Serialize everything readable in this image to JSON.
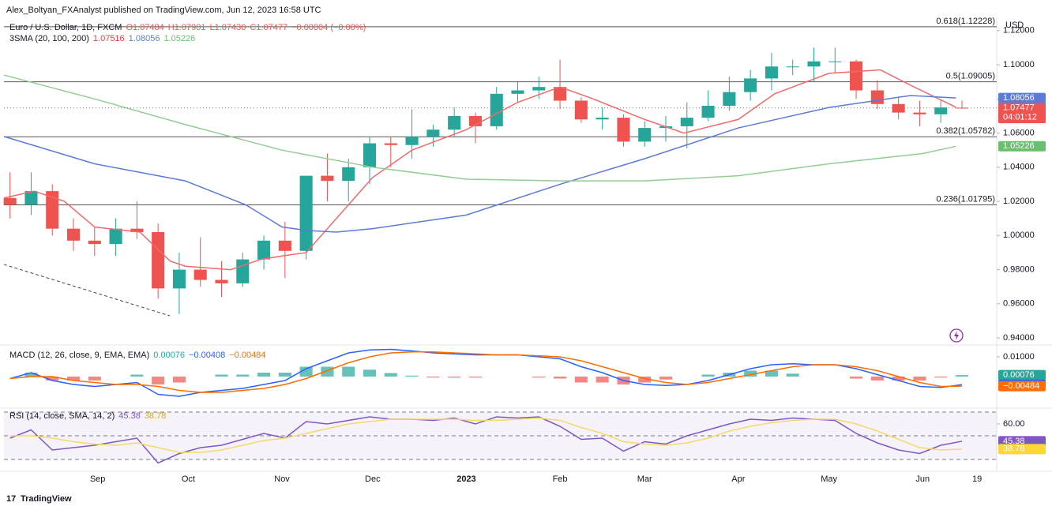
{
  "header": {
    "publisher": "Alex_Boltyan_FXAnalyst published on TradingView.com, Jun 12, 2023 16:58 UTC",
    "currency": "USD",
    "footer": "TradingView"
  },
  "chart_data": [
    {
      "type": "candlestick",
      "title": "Euro / U.S. Dollar, 1D, FXCM",
      "ohlc_labels": [
        "O1.07484",
        "H1.07901",
        "L1.07430",
        "C1.07477",
        "−0.00004 (−0.00%)"
      ],
      "legend": "3SMA (20, 100, 200)",
      "xlim": [
        0,
        328.5
      ],
      "xticks": [
        {
          "value": 31,
          "label": "Sep"
        },
        {
          "value": 61,
          "label": "Oct"
        },
        {
          "value": 92,
          "label": "Nov"
        },
        {
          "value": 122,
          "label": "Dec"
        },
        {
          "value": 153,
          "label": "2023"
        },
        {
          "value": 184,
          "label": "Feb"
        },
        {
          "value": 212,
          "label": "Mar"
        },
        {
          "value": 243,
          "label": "Apr"
        },
        {
          "value": 273,
          "label": "May"
        },
        {
          "value": 304,
          "label": "Jun"
        },
        {
          "value": 322,
          "label": "19"
        }
      ],
      "ylim": [
        0.9368,
        1.125
      ],
      "yticks": [
        {
          "value": 0.94,
          "label": "0.94000"
        },
        {
          "value": 0.96,
          "label": "0.96000"
        },
        {
          "value": 0.98,
          "label": "0.98000"
        },
        {
          "value": 1.0,
          "label": "1.00000"
        },
        {
          "value": 1.02,
          "label": "1.02000"
        },
        {
          "value": 1.04,
          "label": "1.04000"
        },
        {
          "value": 1.06,
          "label": "1.06000"
        },
        {
          "value": 1.08,
          "label": "1.08000"
        },
        {
          "value": 1.1,
          "label": "1.10000"
        },
        {
          "value": 1.12,
          "label": "1.12000"
        }
      ],
      "up_color": "#26a69a",
      "down_color": "#ef5350",
      "x": [
        2,
        9,
        16,
        23,
        30,
        37,
        44,
        51,
        58,
        65,
        72,
        79,
        86,
        93,
        100,
        107,
        114,
        121,
        128,
        135,
        142,
        149,
        156,
        163,
        170,
        177,
        184,
        191,
        198,
        205,
        212,
        219,
        226,
        233,
        240,
        247,
        254,
        261,
        268,
        275,
        282,
        289,
        296,
        303,
        310,
        317
      ],
      "open": [
        1.022,
        1.018,
        1.026,
        1.004,
        0.997,
        0.995,
        1.004,
        1.002,
        0.969,
        0.98,
        0.974,
        0.972,
        0.986,
        0.997,
        0.991,
        1.035,
        1.032,
        1.04,
        1.054,
        1.053,
        1.058,
        1.062,
        1.07,
        1.064,
        1.083,
        1.085,
        1.087,
        1.079,
        1.068,
        1.069,
        1.055,
        1.063,
        1.064,
        1.069,
        1.076,
        1.084,
        1.092,
        1.099,
        1.099,
        1.102,
        1.102,
        1.085,
        1.077,
        1.072,
        1.071,
        1.07484
      ],
      "high": [
        1.037,
        1.037,
        1.03,
        1.01,
        1.005,
        1.01,
        1.02,
        1.007,
        0.99,
        0.999,
        0.985,
        0.99,
        1.0,
        1.008,
        1.035,
        1.048,
        1.045,
        1.058,
        1.058,
        1.074,
        1.065,
        1.075,
        1.072,
        1.087,
        1.09,
        1.093,
        1.103,
        1.081,
        1.075,
        1.071,
        1.067,
        1.07,
        1.078,
        1.085,
        1.093,
        1.097,
        1.107,
        1.103,
        1.11,
        1.11,
        1.103,
        1.091,
        1.081,
        1.079,
        1.08,
        1.07901
      ],
      "low": [
        1.01,
        1.012,
        1.0,
        0.991,
        0.988,
        0.988,
        0.998,
        0.963,
        0.954,
        0.97,
        0.964,
        0.97,
        0.98,
        0.975,
        0.986,
        1.02,
        1.02,
        1.03,
        1.04,
        1.045,
        1.052,
        1.058,
        1.054,
        1.062,
        1.078,
        1.08,
        1.074,
        1.066,
        1.062,
        1.052,
        1.052,
        1.055,
        1.051,
        1.067,
        1.073,
        1.079,
        1.085,
        1.094,
        1.09,
        1.095,
        1.08,
        1.074,
        1.068,
        1.064,
        1.066,
        1.0743
      ],
      "close": [
        1.018,
        1.026,
        1.004,
        0.997,
        0.995,
        1.004,
        1.002,
        0.969,
        0.98,
        0.974,
        0.972,
        0.986,
        0.997,
        0.991,
        1.035,
        1.032,
        1.04,
        1.054,
        1.053,
        1.058,
        1.062,
        1.07,
        1.064,
        1.083,
        1.085,
        1.087,
        1.079,
        1.068,
        1.069,
        1.055,
        1.063,
        1.064,
        1.069,
        1.076,
        1.084,
        1.092,
        1.099,
        1.099,
        1.102,
        1.102,
        1.085,
        1.077,
        1.072,
        1.071,
        1.075,
        1.07477
      ],
      "series": [
        {
          "color": "#f06a6a",
          "x": [
            0,
            10,
            20,
            30,
            45,
            55,
            60,
            75,
            85,
            92,
            100,
            110,
            122,
            135,
            153,
            170,
            184,
            195,
            212,
            225,
            243,
            255,
            273,
            290,
            300,
            315
          ],
          "values": [
            1.022,
            1.026,
            1.02,
            1.005,
            1.002,
            0.985,
            0.982,
            0.98,
            0.986,
            0.988,
            0.99,
            1.01,
            1.034,
            1.05,
            1.062,
            1.078,
            1.087,
            1.08,
            1.068,
            1.06,
            1.068,
            1.083,
            1.095,
            1.097,
            1.088,
            1.07516
          ]
        },
        {
          "color": "#5b7bd5",
          "x": [
            0,
            30,
            60,
            80,
            92,
            100,
            110,
            122,
            153,
            184,
            212,
            243,
            273,
            300,
            315
          ],
          "values": [
            1.058,
            1.042,
            1.032,
            1.018,
            1.005,
            1.003,
            1.002,
            1.004,
            1.012,
            1.03,
            1.045,
            1.063,
            1.075,
            1.082,
            1.08056
          ]
        },
        {
          "color": "#94cc94",
          "x": [
            0,
            30,
            60,
            92,
            122,
            153,
            184,
            212,
            243,
            273,
            304,
            315
          ],
          "values": [
            1.094,
            1.08,
            1.065,
            1.05,
            1.04,
            1.033,
            1.032,
            1.032,
            1.035,
            1.042,
            1.048,
            1.05226
          ]
        }
      ],
      "levels": [
        {
          "value": 1.12228,
          "label": "0.618(1.12228)"
        },
        {
          "value": 1.09005,
          "label": "0.5(1.09005)"
        },
        {
          "value": 1.05782,
          "label": "0.382(1.05782)"
        },
        {
          "value": 1.01795,
          "label": "0.236(1.01795)"
        }
      ],
      "price_labels": [
        {
          "value": 1.07516,
          "label": "1.07516",
          "color": "#f23645"
        },
        {
          "value": 1.08056,
          "label": "1.08056",
          "color": "#5b7bd5"
        },
        {
          "value": 1.05226,
          "label": "1.05226",
          "color": "#6abf6e"
        },
        {
          "value": 1.07477,
          "label": "1.07477",
          "color": "#ef5350",
          "countdown": "04:01:12"
        }
      ]
    },
    {
      "type": "macd",
      "title": "MACD (12, 26, close, 9, EMA, EMA)",
      "xlim": [
        0,
        328.5
      ],
      "ylim": [
        -0.0152,
        0.0148
      ],
      "yticks": [
        {
          "value": 0.01,
          "label": "0.01000"
        }
      ],
      "x": [
        2,
        9,
        16,
        23,
        30,
        37,
        44,
        51,
        58,
        65,
        72,
        79,
        86,
        93,
        100,
        107,
        114,
        121,
        128,
        135,
        142,
        149,
        156,
        163,
        170,
        177,
        184,
        191,
        198,
        205,
        212,
        219,
        226,
        233,
        240,
        247,
        254,
        261,
        268,
        275,
        282,
        289,
        296,
        303,
        310,
        317
      ],
      "histogram": [
        0,
        0.002,
        -0.002,
        -0.002,
        -0.002,
        0,
        0.001,
        -0.004,
        -0.003,
        0,
        0.001,
        0.001,
        0.002,
        0.002,
        0.005,
        0.005,
        0.005,
        0.0035,
        0.0018,
        0.0005,
        -0.0005,
        -0.0005,
        -0.0005,
        0,
        0,
        -0.0005,
        -0.001,
        -0.003,
        -0.003,
        -0.004,
        -0.003,
        -0.0015,
        0,
        0.001,
        0.002,
        0.003,
        0.003,
        0.0015,
        0,
        0,
        -0.001,
        -0.002,
        -0.002,
        -0.002,
        -0.0005,
        0.00076
      ],
      "pos_color": "#26a69a",
      "neg_color": "#ef5350",
      "series": [
        {
          "color": "#2962ff",
          "values": [
            -0.001,
            0.002,
            -0.002,
            -0.004,
            -0.005,
            -0.004,
            -0.003,
            -0.009,
            -0.01,
            -0.008,
            -0.007,
            -0.006,
            -0.004,
            -0.002,
            0.004,
            0.008,
            0.012,
            0.0135,
            0.0138,
            0.013,
            0.012,
            0.0115,
            0.011,
            0.011,
            0.011,
            0.01,
            0.009,
            0.005,
            0.002,
            -0.002,
            -0.004,
            -0.0045,
            -0.004,
            -0.002,
            0.001,
            0.004,
            0.006,
            0.0065,
            0.006,
            0.006,
            0.004,
            0.001,
            -0.002,
            -0.005,
            -0.0055,
            -0.00408
          ]
        },
        {
          "color": "#ff6d00",
          "values": [
            -0.001,
            0,
            0,
            -0.002,
            -0.003,
            -0.004,
            -0.004,
            -0.005,
            -0.007,
            -0.008,
            -0.008,
            -0.007,
            -0.006,
            -0.004,
            -0.001,
            0.003,
            0.007,
            0.01,
            0.012,
            0.0125,
            0.0125,
            0.012,
            0.0115,
            0.011,
            0.011,
            0.0105,
            0.01,
            0.008,
            0.005,
            0.002,
            -0.001,
            -0.003,
            -0.004,
            -0.003,
            -0.001,
            0.001,
            0.003,
            0.005,
            0.006,
            0.006,
            0.005,
            0.003,
            0,
            -0.003,
            -0.005,
            -0.00484
          ]
        }
      ],
      "legend_values": [
        {
          "value": 0.00076,
          "label": "0.00076",
          "color": "#26a69a"
        },
        {
          "value": -0.00408,
          "label": "−0.00408",
          "color": "#2962ff"
        },
        {
          "value": -0.00484,
          "label": "−0.00484",
          "color": "#ff6d00"
        }
      ]
    },
    {
      "type": "rsi",
      "title": "RSI (14, close, SMA, 14, 2)",
      "xlim": [
        0,
        328.5
      ],
      "ylim": [
        21.3,
        72.7
      ],
      "yticks": [
        {
          "value": 60,
          "label": "60.00"
        }
      ],
      "levels": [
        70,
        50,
        30
      ],
      "x": [
        2,
        9,
        16,
        23,
        30,
        37,
        44,
        51,
        58,
        65,
        72,
        79,
        86,
        93,
        100,
        107,
        114,
        121,
        128,
        135,
        142,
        149,
        156,
        163,
        170,
        177,
        184,
        191,
        198,
        205,
        212,
        219,
        226,
        233,
        240,
        247,
        254,
        261,
        268,
        275,
        282,
        289,
        296,
        303,
        310,
        317
      ],
      "series": [
        {
          "color": "#7e57c2",
          "values": [
            48,
            55,
            38,
            40,
            42,
            45,
            48,
            27,
            35,
            40,
            42,
            47,
            52,
            48,
            62,
            60,
            63,
            66,
            64,
            64,
            63,
            65,
            60,
            66,
            65,
            66,
            58,
            47,
            48,
            37,
            45,
            43,
            50,
            55,
            60,
            64,
            63,
            65,
            64,
            63,
            52,
            44,
            38,
            35,
            42,
            45.38
          ]
        },
        {
          "color": "#f5d96b",
          "values": [
            50,
            50,
            48,
            45,
            43,
            42,
            44,
            40,
            36,
            36,
            38,
            42,
            46,
            48,
            52,
            56,
            60,
            62,
            64,
            64,
            64,
            64,
            63,
            63,
            64,
            65,
            63,
            57,
            52,
            45,
            43,
            42,
            44,
            48,
            54,
            58,
            61,
            63,
            64,
            64,
            60,
            54,
            47,
            40,
            38,
            38.78
          ]
        }
      ],
      "legend_values": [
        {
          "value": 45.38,
          "label": "45.38",
          "color": "#7e57c2"
        },
        {
          "value": 38.78,
          "label": "38.78",
          "color": "#fdd835"
        }
      ]
    }
  ]
}
